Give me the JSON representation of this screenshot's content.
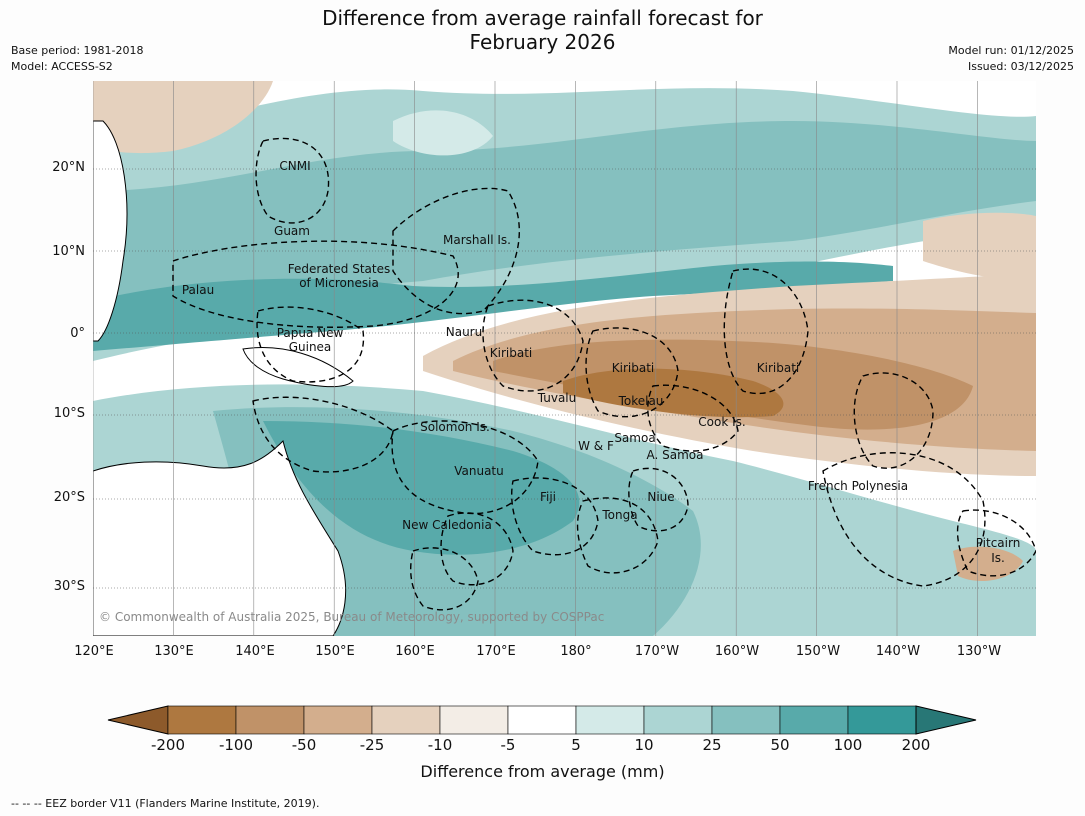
{
  "title_line1": "Difference from average rainfall forecast for",
  "title_line2": "February 2026",
  "meta_left": [
    "Base period: 1981-2018",
    "Model: ACCESS-S2"
  ],
  "meta_right": [
    "Model run: 01/12/2025",
    "Issued: 03/12/2025"
  ],
  "lon_labels": [
    "120°E",
    "130°E",
    "140°E",
    "150°E",
    "160°E",
    "170°E",
    "180°",
    "170°W",
    "160°W",
    "150°W",
    "140°W",
    "130°W"
  ],
  "lat_labels": [
    "20°N",
    "10°N",
    "0°",
    "10°S",
    "20°S",
    "30°S"
  ],
  "regions": [
    "CNMI",
    "Guam",
    "Marshall Is.",
    "Federated States",
    "of Micronesia",
    "Palau",
    "Papua New",
    "Guinea",
    "Nauru",
    "Kiribati",
    "Kiribati",
    "Kiribati",
    "Tuvalu",
    "Tokelau",
    "Cook Is.",
    "Solomon Is.",
    "W & F",
    "Samoa",
    "A. Samoa",
    "Vanuatu",
    "Fiji",
    "Niue",
    "Tonga",
    "New Caledonia",
    "French Polynesia",
    "Pitcairn",
    "Is."
  ],
  "credit": "© Commonwealth of Australia 2025, Bureau of Meteorology, supported by COSPPac",
  "colorbar": {
    "levels": [
      "-200",
      "-100",
      "-50",
      "-25",
      "-10",
      "-5",
      "5",
      "10",
      "25",
      "50",
      "100",
      "200"
    ],
    "colors": [
      "#8d5a2b",
      "#ae7840",
      "#c09268",
      "#d3ae8d",
      "#e5d1be",
      "#f3ede6",
      "#ffffff",
      "#d4eae8",
      "#acd5d3",
      "#85c0bf",
      "#58aaaa",
      "#349999",
      "#287776"
    ],
    "label": "Difference from average (mm)"
  },
  "footer": "--  --  -- EEZ border V11 (Flanders Marine Institute, 2019)."
}
